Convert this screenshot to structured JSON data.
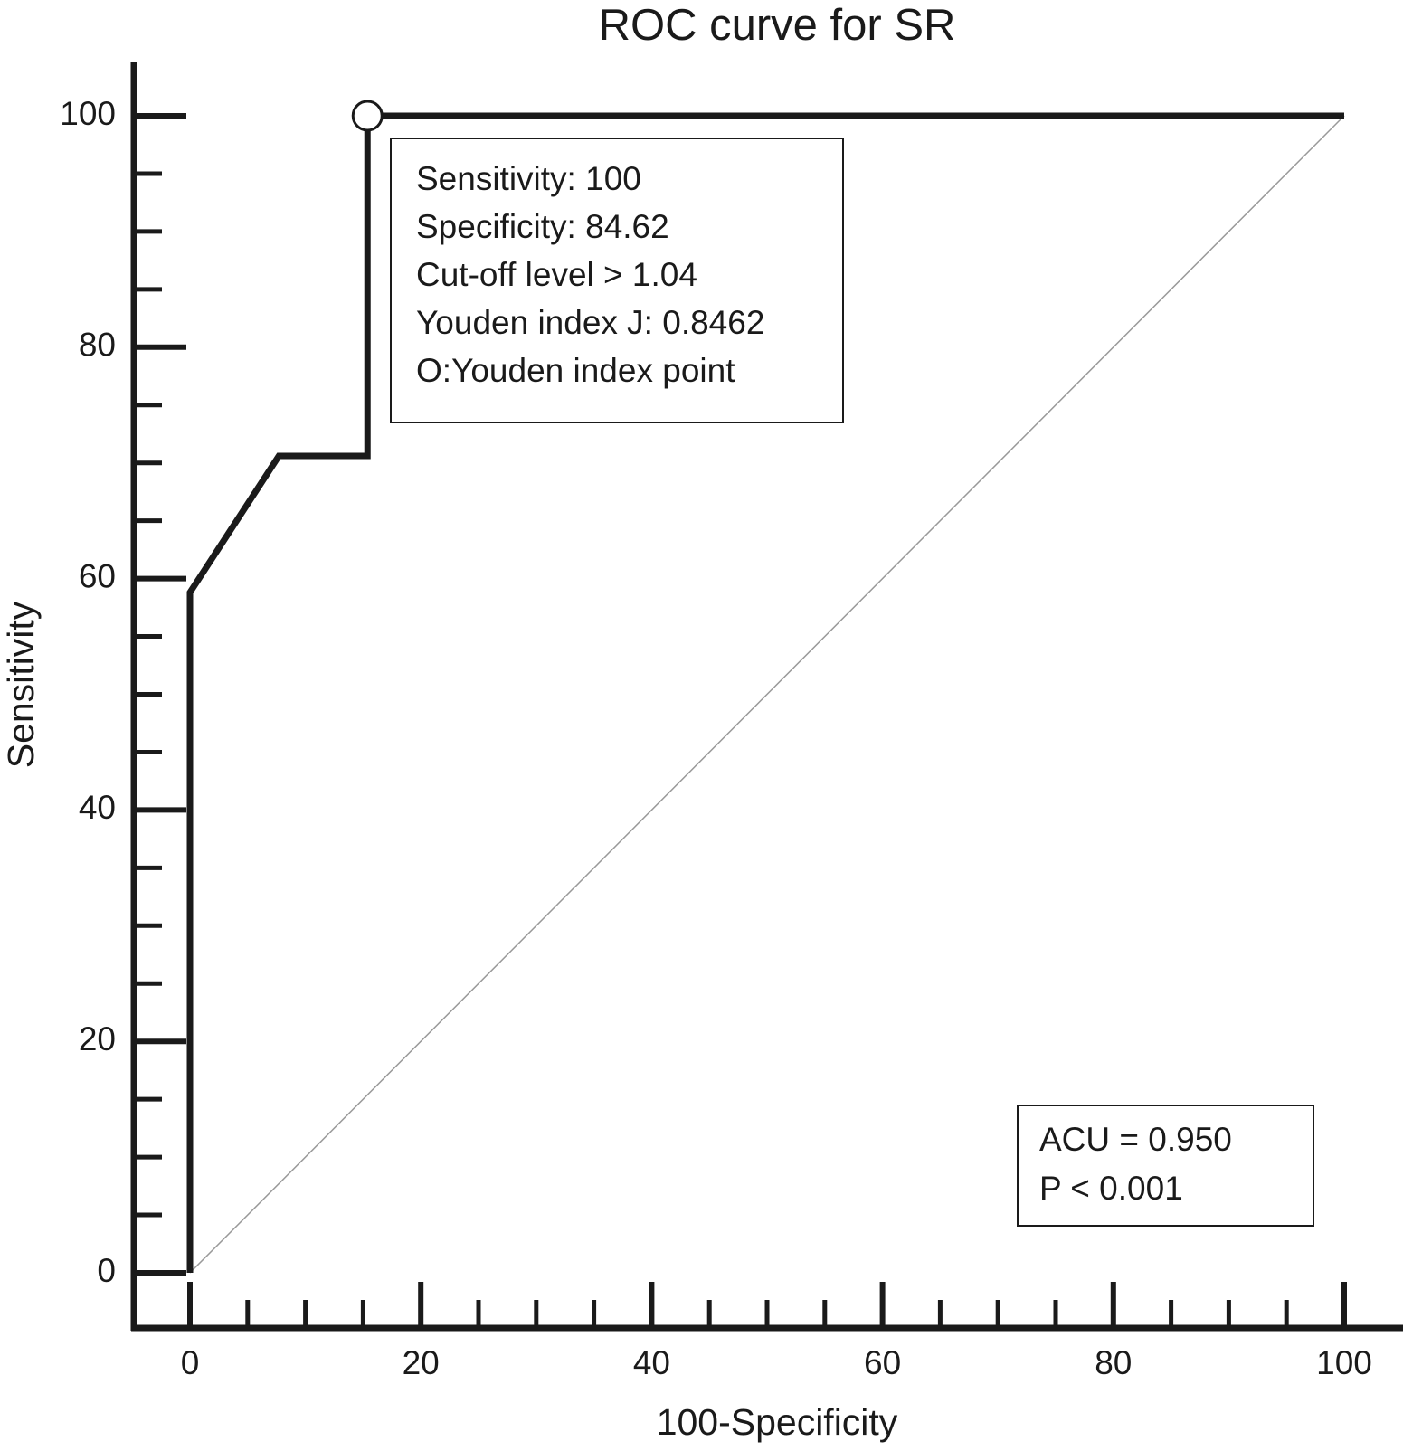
{
  "chart_data": {
    "type": "line",
    "title": "ROC curve for SR",
    "x_label": "100-Specificity",
    "y_label": "Sensitivity",
    "xlim": [
      0,
      100
    ],
    "ylim": [
      0,
      100
    ],
    "xticks": [
      0,
      20,
      40,
      60,
      80,
      100
    ],
    "yticks": [
      0,
      20,
      40,
      60,
      80,
      100
    ],
    "xticks_minor": [
      5,
      10,
      15,
      25,
      30,
      35,
      45,
      50,
      55,
      65,
      70,
      75,
      85,
      90,
      95
    ],
    "yticks_minor": [
      5,
      10,
      15,
      25,
      30,
      35,
      45,
      50,
      55,
      65,
      70,
      75,
      85,
      90,
      95
    ],
    "curve": {
      "color": "#1a1a1a",
      "x": [
        0,
        0,
        7.7,
        15.38,
        15.38,
        100
      ],
      "y": [
        0,
        58.8,
        70.6,
        70.6,
        100,
        100
      ]
    },
    "reference_line": {
      "color": "#999999",
      "x": [
        0,
        100
      ],
      "y": [
        0,
        100
      ]
    },
    "youden_point": {
      "x": 15.38,
      "y": 100
    },
    "info_box": [
      "Sensitivity: 100",
      "Specificity: 84.62",
      "Cut-off level > 1.04",
      "Youden index J: 0.8462",
      "O:Youden index point"
    ],
    "stats_box": [
      "ACU = 0.950",
      "P < 0.001"
    ]
  }
}
